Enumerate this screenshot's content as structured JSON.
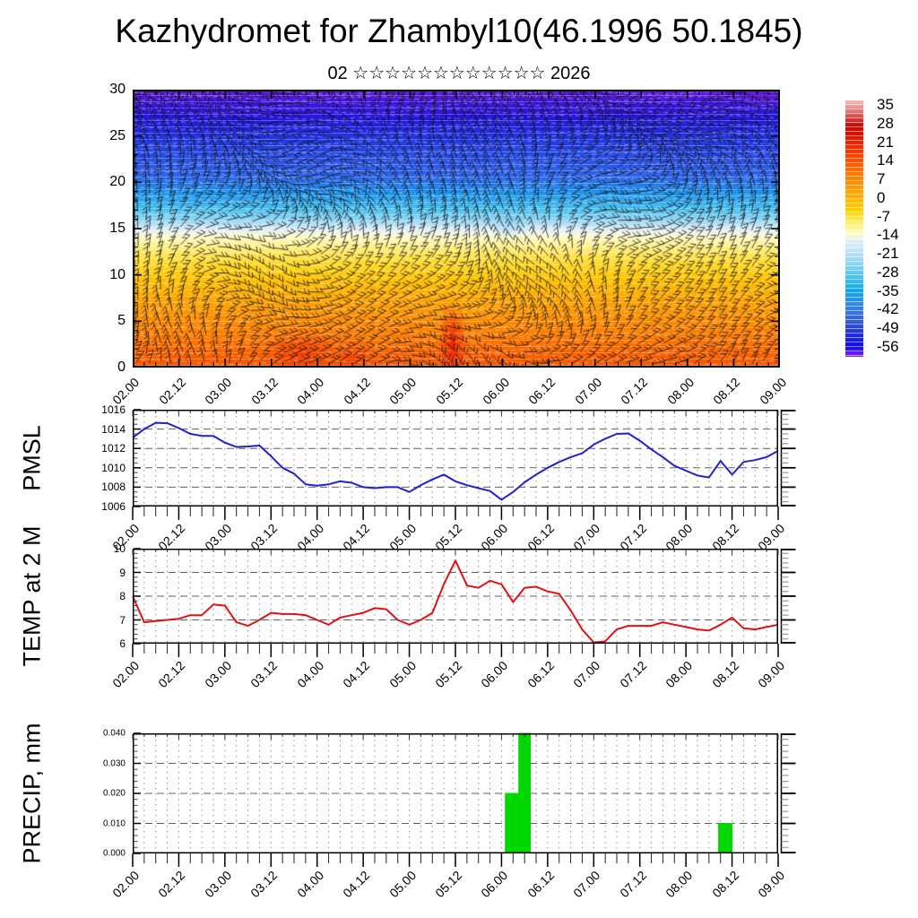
{
  "page": {
    "title": "Kazhydromet for Zhambyl10(46.1996 50.1845)",
    "subtitle": "02 ☆☆☆☆☆☆☆☆☆☆☆☆ 2026"
  },
  "time_axis": {
    "labels": [
      "02.00",
      "02.12",
      "03.00",
      "03.12",
      "04.00",
      "04.12",
      "05.00",
      "05.12",
      "06.00",
      "06.12",
      "07.00",
      "07.12",
      "08.00",
      "08.12",
      "09.00"
    ],
    "total_hours": 168,
    "major_step_hours": 12,
    "minor_step_hours": 3
  },
  "colorbar": {
    "ticks": [
      35,
      28,
      21,
      14,
      7,
      0,
      -7,
      -14,
      -21,
      -28,
      -35,
      -42,
      -49,
      -56
    ],
    "gradient": [
      [
        0,
        "#f4bcbc"
      ],
      [
        0.03,
        "#e89090"
      ],
      [
        0.07,
        "#d24040"
      ],
      [
        0.1,
        "#c40808"
      ],
      [
        0.14,
        "#e01500"
      ],
      [
        0.19,
        "#f93000"
      ],
      [
        0.24,
        "#ff5500"
      ],
      [
        0.3,
        "#ff8300"
      ],
      [
        0.37,
        "#ffab00"
      ],
      [
        0.43,
        "#ffd200"
      ],
      [
        0.48,
        "#ffef70"
      ],
      [
        0.52,
        "#ffffc6"
      ],
      [
        0.545,
        "#e2f0f9"
      ],
      [
        0.59,
        "#bce3f7"
      ],
      [
        0.64,
        "#8cd3f3"
      ],
      [
        0.69,
        "#47c0ef"
      ],
      [
        0.74,
        "#0da9ea"
      ],
      [
        0.79,
        "#2f8ce4"
      ],
      [
        0.85,
        "#3a67da"
      ],
      [
        0.9,
        "#2438d4"
      ],
      [
        0.96,
        "#1208f0"
      ],
      [
        1,
        "#8a25ee"
      ]
    ]
  },
  "chart_data": [
    {
      "type": "heatmap",
      "name": "time-height temperature cross-section with wind barbs",
      "title": "",
      "ylim": [
        0,
        30
      ],
      "yticks": [
        0,
        5,
        10,
        15,
        20,
        25,
        30
      ],
      "y_minor_step": 1,
      "wind_barbs_overlay": true,
      "field_gradient": [
        [
          0,
          "#6b1ed4"
        ],
        [
          0.04,
          "#4418de"
        ],
        [
          0.1,
          "#2418de"
        ],
        [
          0.17,
          "#2233e4"
        ],
        [
          0.24,
          "#2a4fe8"
        ],
        [
          0.31,
          "#2f64ea"
        ],
        [
          0.37,
          "#1e93ee"
        ],
        [
          0.43,
          "#49c1f0"
        ],
        [
          0.475,
          "#9fdaf5"
        ],
        [
          0.505,
          "#e4f1f8"
        ],
        [
          0.53,
          "#fffcc8"
        ],
        [
          0.57,
          "#ffee7d"
        ],
        [
          0.62,
          "#ffdc2e"
        ],
        [
          0.68,
          "#ffc400"
        ],
        [
          0.75,
          "#ffa800"
        ],
        [
          0.82,
          "#ff9000"
        ],
        [
          0.89,
          "#ff7b00"
        ],
        [
          0.95,
          "#fb6300"
        ],
        [
          1,
          "#f55600"
        ]
      ],
      "approx_profile_height_vs_temp": [
        [
          0,
          15
        ],
        [
          5,
          8
        ],
        [
          10,
          1
        ],
        [
          13,
          -6
        ],
        [
          15,
          -12
        ],
        [
          17,
          -20
        ],
        [
          20,
          -30
        ],
        [
          25,
          -45
        ],
        [
          30,
          -55
        ]
      ],
      "hot_spots": [
        {
          "center_hour": 44,
          "center_height": 1.5,
          "rx_hours": 14,
          "ry_heights": 3.5,
          "color": "rgba(240,45,0,0.70)"
        },
        {
          "center_hour": 57,
          "center_height": 1.0,
          "rx_hours": 8,
          "ry_heights": 2.5,
          "color": "rgba(240,45,0,0.55)"
        },
        {
          "center_hour": 83,
          "center_height": 2.5,
          "rx_hours": 5,
          "ry_heights": 6.0,
          "color": "rgba(235,20,0,0.85)"
        },
        {
          "center_hour": 98,
          "center_height": 15.5,
          "rx_hours": 7,
          "ry_heights": 2.2,
          "color": "rgba(130,205,245,0.55)"
        },
        {
          "center_hour": 163,
          "center_height": 29.5,
          "rx_hours": 10,
          "ry_heights": 1.8,
          "color": "rgba(100,25,214,0.85)"
        }
      ]
    },
    {
      "type": "line",
      "title": "PMSL",
      "color": "#2222cc",
      "ylim": [
        1006,
        1016
      ],
      "yticks": [
        1006,
        1008,
        1010,
        1012,
        1014,
        1016
      ],
      "y_minor_step": 0.5,
      "x_start_hour": 0,
      "x_step_hours": 3,
      "values": [
        1013.1,
        1014.0,
        1014.65,
        1014.6,
        1014.1,
        1013.5,
        1013.3,
        1013.3,
        1012.6,
        1012.15,
        1012.2,
        1012.3,
        1011.2,
        1010.0,
        1009.4,
        1008.3,
        1008.15,
        1008.3,
        1008.6,
        1008.45,
        1008.0,
        1007.9,
        1008.0,
        1008.0,
        1007.5,
        1008.2,
        1008.8,
        1009.3,
        1008.6,
        1008.2,
        1007.9,
        1007.6,
        1006.7,
        1007.5,
        1008.5,
        1009.3,
        1010.0,
        1010.6,
        1011.1,
        1011.5,
        1012.4,
        1013.0,
        1013.5,
        1013.55,
        1012.8,
        1011.9,
        1011.1,
        1010.2,
        1009.7,
        1009.2,
        1009.0,
        1010.7,
        1009.3,
        1010.6,
        1010.8,
        1011.1,
        1011.75
      ]
    },
    {
      "type": "line",
      "title": "TEMP at 2 M",
      "color": "#e01212",
      "ylim": [
        6,
        10
      ],
      "yticks": [
        6,
        7,
        8,
        9,
        10
      ],
      "y_minor_step": 0.2,
      "x_start_hour": 0,
      "x_step_hours": 3,
      "values": [
        8.0,
        6.9,
        6.95,
        7.0,
        7.05,
        7.2,
        7.2,
        7.65,
        7.6,
        6.9,
        6.75,
        7.0,
        7.3,
        7.25,
        7.25,
        7.2,
        7.0,
        6.8,
        7.1,
        7.2,
        7.3,
        7.5,
        7.45,
        7.0,
        6.8,
        7.0,
        7.3,
        8.5,
        9.5,
        8.45,
        8.35,
        8.65,
        8.5,
        7.75,
        8.35,
        8.4,
        8.2,
        8.1,
        7.4,
        6.6,
        6.05,
        6.1,
        6.6,
        6.75,
        6.75,
        6.75,
        6.9,
        6.8,
        6.7,
        6.6,
        6.55,
        6.8,
        7.1,
        6.65,
        6.6,
        6.7,
        6.8
      ]
    },
    {
      "type": "bar",
      "title": "PRECIP, mm",
      "color": "#00d800",
      "ylim": [
        0,
        0.04
      ],
      "yticks": [
        0,
        0.01,
        0.02,
        0.03,
        0.04
      ],
      "ytick_labels": [
        "0.000",
        "0.010",
        "0.020",
        "0.030",
        "0.040"
      ],
      "y_minor_step": 0.002,
      "bars": [
        {
          "start_hour": 97,
          "end_hour": 100.5,
          "value": 0.02
        },
        {
          "start_hour": 100.5,
          "end_hour": 103.5,
          "value": 0.04
        },
        {
          "start_hour": 152.5,
          "end_hour": 156,
          "value": 0.01
        }
      ]
    }
  ]
}
